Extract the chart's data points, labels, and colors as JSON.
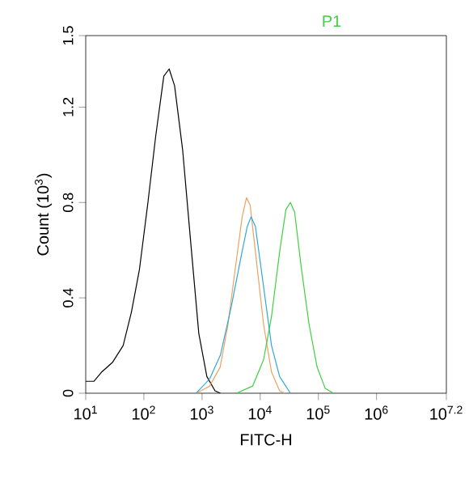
{
  "chart_data": {
    "type": "line",
    "xlabel": "FITC-H",
    "ylabel": "Count (10$^{3}$)",
    "log": "x",
    "grid": false,
    "marker": "none",
    "line_style": "solid",
    "annotations": [
      "P1"
    ],
    "xlim": [
      10,
      15848931.9
    ],
    "ylim": [
      0,
      1.5
    ],
    "xticks": [
      {
        "value": 10,
        "label": "10$^{1}$"
      },
      {
        "value": 100,
        "label": "10$^{2}$"
      },
      {
        "value": 1000,
        "label": "10$^{3}$"
      },
      {
        "value": 10000,
        "label": "10$^{4}$"
      },
      {
        "value": 100000,
        "label": "10$^{5}$"
      },
      {
        "value": 1000000,
        "label": "10$^{6}$"
      },
      {
        "value": 15848931.9,
        "label": "10$^{7.2}$"
      }
    ],
    "yticks": [
      0,
      0.4,
      0.8,
      1.2,
      1.5
    ],
    "series": [
      {
        "color": "#000000",
        "x": [
          10,
          13.8,
          19,
          29,
          44,
          61,
          84,
          116,
          160,
          220,
          272,
          337,
          464,
          640,
          880,
          1210,
          1670,
          2070
        ],
        "values": [
          0.05,
          0.05,
          0.09,
          0.13,
          0.2,
          0.34,
          0.52,
          0.79,
          1.08,
          1.33,
          1.36,
          1.29,
          1.02,
          0.63,
          0.25,
          0.07,
          0.01,
          0
        ]
      },
      {
        "color": "#f0a060",
        "x": [
          800,
          1350,
          2050,
          2800,
          3900,
          4900,
          5800,
          6700,
          8300,
          11400,
          15600,
          21500,
          27000
        ],
        "values": [
          0,
          0.03,
          0.11,
          0.29,
          0.56,
          0.74,
          0.82,
          0.79,
          0.59,
          0.29,
          0.09,
          0.01,
          0
        ]
      },
      {
        "color": "#30a8d8",
        "x": [
          790,
          1350,
          2070,
          3160,
          4840,
          6000,
          6970,
          8260,
          11370,
          15640,
          21540,
          33040
        ],
        "values": [
          0,
          0.06,
          0.16,
          0.36,
          0.59,
          0.7,
          0.74,
          0.7,
          0.45,
          0.2,
          0.07,
          0
        ]
      },
      {
        "color": "#40d040",
        "x": [
          3900,
          7400,
          11400,
          15600,
          21500,
          27600,
          33000,
          39000,
          50000,
          69000,
          95000,
          131000,
          182000
        ],
        "values": [
          0,
          0.03,
          0.14,
          0.32,
          0.59,
          0.77,
          0.8,
          0.76,
          0.54,
          0.29,
          0.11,
          0.02,
          0
        ]
      }
    ]
  }
}
